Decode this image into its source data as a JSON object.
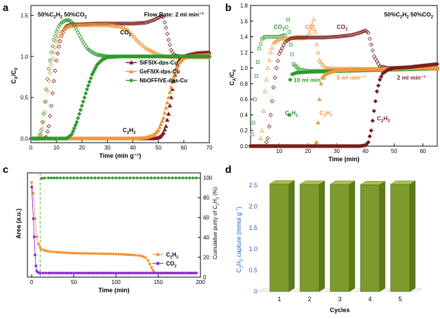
{
  "chart_data": [
    {
      "panel": "a",
      "type": "line",
      "title": "",
      "header_left": "50%C2H2  50%CO2",
      "header_right": "Flow Rate: 2 ml min⁻¹",
      "xlabel": "Time (min g⁻¹)",
      "ylabel": "CA/C0",
      "xlim": [
        0,
        70
      ],
      "ylim": [
        -0.05,
        1.62
      ],
      "xticks": [
        "0",
        "10",
        "20",
        "30",
        "40",
        "50",
        "60",
        "70"
      ],
      "yticks": [
        "0.0",
        "0.5",
        "1.0",
        "1.5"
      ],
      "annotations": [
        {
          "text": "CO2",
          "x": 35,
          "y": 1.27
        },
        {
          "text": "C2H2",
          "x": 36,
          "y": 0.08
        }
      ],
      "legend": [
        "SIFSIX-dps-Cu",
        "GeFSIX-dps-Cu",
        "NbOFFIVE-dps-Cu"
      ],
      "legend_position": "right",
      "colors": {
        "SIFSIX-dps-Cu": "#7a1e1e",
        "GeFSIX-dps-Cu": "#f0963a",
        "NbOFFIVE-dps-Cu": "#2e9a2e"
      },
      "series": [
        {
          "name": "SIFSIX-dps-Cu",
          "gas": "CO2",
          "marker": "open-diamond",
          "x": [
            0,
            5,
            6,
            7,
            8,
            9,
            10,
            11,
            12,
            13,
            14,
            16,
            18,
            20,
            25,
            30,
            35,
            40,
            45,
            48,
            50,
            51,
            52,
            53,
            54,
            55,
            56,
            58,
            60,
            62,
            65,
            70
          ],
          "y": [
            0,
            0,
            0.02,
            0.15,
            0.4,
            0.7,
            0.95,
            1.12,
            1.25,
            1.33,
            1.37,
            1.39,
            1.39,
            1.39,
            1.4,
            1.4,
            1.4,
            1.4,
            1.41,
            1.44,
            1.47,
            1.49,
            1.48,
            1.35,
            1.2,
            1.08,
            1.02,
            1.0,
            1.0,
            1.0,
            1.0,
            1.0
          ]
        },
        {
          "name": "GeFSIX-dps-Cu",
          "gas": "CO2",
          "marker": "open-diamond",
          "x": [
            0,
            3,
            4,
            5,
            6,
            7,
            8,
            9,
            10,
            11,
            12,
            14,
            16,
            18,
            20,
            25,
            30,
            35,
            38,
            40,
            42,
            45,
            48,
            50,
            52,
            55,
            58,
            60,
            65,
            70
          ],
          "y": [
            0,
            0,
            0.05,
            0.2,
            0.45,
            0.7,
            0.9,
            1.05,
            1.17,
            1.25,
            1.3,
            1.35,
            1.37,
            1.38,
            1.38,
            1.38,
            1.38,
            1.36,
            1.32,
            1.25,
            1.18,
            1.1,
            1.05,
            1.02,
            1.0,
            0.99,
            0.99,
            0.99,
            0.99,
            0.99
          ]
        },
        {
          "name": "NbOFFIVE-dps-Cu",
          "gas": "CO2",
          "marker": "open-diamond",
          "x": [
            0,
            3,
            4,
            5,
            6,
            7,
            8,
            9,
            10,
            11,
            12,
            13,
            14,
            15,
            16,
            17,
            18,
            20,
            22,
            24,
            26,
            28,
            30,
            35,
            40,
            50,
            60,
            70
          ],
          "y": [
            0,
            0,
            0.1,
            0.3,
            0.6,
            0.85,
            1.05,
            1.2,
            1.3,
            1.37,
            1.41,
            1.43,
            1.44,
            1.44,
            1.42,
            1.38,
            1.32,
            1.2,
            1.1,
            1.05,
            1.02,
            1.01,
            1.0,
            1.0,
            1.0,
            1.0,
            1.0,
            1.0
          ]
        },
        {
          "name": "SIFSIX-dps-Cu",
          "gas": "C2H2",
          "marker": "filled-triangle",
          "x": [
            0,
            10,
            20,
            30,
            40,
            45,
            48,
            50,
            51,
            52,
            53,
            54,
            55,
            56,
            57,
            58,
            60,
            62,
            65,
            70
          ],
          "y": [
            0,
            0,
            0,
            0,
            0,
            0,
            0,
            0.01,
            0.03,
            0.07,
            0.15,
            0.3,
            0.5,
            0.7,
            0.85,
            0.95,
            1.0,
            1.02,
            1.04,
            1.05
          ]
        },
        {
          "name": "GeFSIX-dps-Cu",
          "gas": "C2H2",
          "marker": "filled-triangle",
          "x": [
            0,
            10,
            20,
            30,
            40,
            45,
            48,
            50,
            52,
            54,
            56,
            58,
            60,
            62,
            65,
            70
          ],
          "y": [
            0,
            0,
            0,
            0,
            0,
            0.01,
            0.04,
            0.1,
            0.25,
            0.5,
            0.75,
            0.92,
            0.98,
            1.0,
            1.01,
            1.02
          ]
        },
        {
          "name": "NbOFFIVE-dps-Cu",
          "gas": "C2H2",
          "marker": "filled-diamond",
          "x": [
            0,
            5,
            10,
            14,
            16,
            18,
            20,
            22,
            24,
            26,
            28,
            30,
            35,
            40,
            50,
            60,
            70
          ],
          "y": [
            0,
            0,
            0,
            0,
            0.05,
            0.2,
            0.4,
            0.6,
            0.78,
            0.9,
            0.96,
            0.99,
            1.0,
            1.0,
            1.0,
            1.0,
            1.0
          ]
        }
      ]
    },
    {
      "panel": "b",
      "type": "line",
      "title": "",
      "header": "50%C2H2  50%CO2",
      "xlabel": "Time (min)",
      "ylabel": "CA/C0",
      "xlim": [
        0,
        65
      ],
      "ylim": [
        0,
        1.8
      ],
      "xticks": [
        "10",
        "20",
        "30",
        "40",
        "50",
        "60"
      ],
      "yticks": [
        "0.0",
        "0.2",
        "0.4",
        "0.6",
        "0.8",
        "1.0",
        "1.2",
        "1.4",
        "1.6",
        "1.8"
      ],
      "annotations": [
        {
          "text": "CO2",
          "x": 8,
          "y": 1.5,
          "color": "#2e9a2e"
        },
        {
          "text": "CO2",
          "x": 19,
          "y": 1.5,
          "color": "#f0963a"
        },
        {
          "text": "CO2",
          "x": 30,
          "y": 1.5,
          "color": "#7a1e1e"
        },
        {
          "text": "10 ml min⁻¹",
          "x": 15,
          "y": 0.82,
          "color": "#2e9a2e"
        },
        {
          "text": "5 ml min⁻¹",
          "x": 30,
          "y": 0.85,
          "color": "#f0963a"
        },
        {
          "text": "2 ml min⁻¹",
          "x": 51,
          "y": 0.85,
          "color": "#7a1e1e"
        },
        {
          "text": "C2H2",
          "x": 12,
          "y": 0.4,
          "color": "#2e9a2e"
        },
        {
          "text": "C2H2",
          "x": 24,
          "y": 0.4,
          "color": "#f0963a"
        },
        {
          "text": "C2H2",
          "x": 44,
          "y": 0.33,
          "color": "#7a1e1e"
        }
      ],
      "series": [
        {
          "name": "10 ml min-1",
          "gas": "CO2",
          "color": "#2e9a2e",
          "marker": "open-square",
          "x": [
            0,
            1,
            2,
            3,
            4,
            5,
            6,
            8,
            10,
            12,
            13,
            14,
            15,
            17,
            20,
            25,
            30,
            40,
            50,
            60,
            65
          ],
          "y": [
            0,
            0.3,
            0.9,
            1.25,
            1.37,
            1.4,
            1.4,
            1.4,
            1.4,
            1.42,
            1.62,
            1.3,
            1.05,
            0.98,
            0.96,
            0.96,
            0.97,
            0.98,
            0.98,
            0.99,
            0.99
          ]
        },
        {
          "name": "5 ml min-1",
          "gas": "CO2",
          "color": "#f0963a",
          "marker": "open-triangle",
          "x": [
            0,
            3,
            4,
            5,
            6,
            7,
            8,
            10,
            12,
            14,
            16,
            18,
            20,
            21,
            22,
            23,
            24,
            26,
            30,
            40,
            50,
            60,
            65
          ],
          "y": [
            0,
            0,
            0.2,
            0.7,
            1.0,
            1.2,
            1.32,
            1.37,
            1.38,
            1.38,
            1.38,
            1.38,
            1.4,
            1.5,
            1.62,
            1.3,
            1.1,
            1.0,
            0.99,
            0.99,
            0.99,
            0.99,
            0.99
          ]
        },
        {
          "name": "2 ml min-1",
          "gas": "CO2",
          "color": "#7a1e1e",
          "marker": "open-diamond",
          "x": [
            0,
            5,
            6,
            7,
            8,
            9,
            10,
            12,
            14,
            16,
            20,
            25,
            30,
            35,
            38,
            40,
            41,
            42,
            43,
            45,
            48,
            50,
            55,
            60,
            65
          ],
          "y": [
            0,
            0,
            0.1,
            0.4,
            0.75,
            1.0,
            1.18,
            1.33,
            1.38,
            1.39,
            1.39,
            1.39,
            1.4,
            1.42,
            1.45,
            1.48,
            1.45,
            1.3,
            1.15,
            1.02,
            1.0,
            1.0,
            1.0,
            1.0,
            1.0
          ]
        },
        {
          "name": "10 ml min-1",
          "gas": "C2H2",
          "color": "#2e9a2e",
          "marker": "filled-diamond",
          "x": [
            0,
            10,
            12,
            13,
            13.4,
            13.8,
            14.5,
            16,
            20,
            30,
            40,
            50,
            60,
            65
          ],
          "y": [
            0,
            0,
            0,
            0,
            0.4,
            0.85,
            0.92,
            0.94,
            0.95,
            0.96,
            0.97,
            0.98,
            0.99,
            1.0
          ]
        },
        {
          "name": "5 ml min-1",
          "gas": "C2H2",
          "color": "#f0963a",
          "marker": "filled-triangle",
          "x": [
            0,
            10,
            20,
            22,
            23,
            23.5,
            24,
            24.5,
            25,
            26,
            28,
            30,
            40,
            50,
            60,
            65
          ],
          "y": [
            0,
            0,
            0,
            0,
            0.05,
            0.3,
            0.6,
            0.8,
            0.88,
            0.92,
            0.95,
            0.97,
            0.98,
            0.99,
            1.0,
            1.0
          ]
        },
        {
          "name": "2 ml min-1",
          "gas": "C2H2",
          "color": "#7a1e1e",
          "marker": "filled-diamond",
          "x": [
            0,
            10,
            20,
            30,
            38,
            40,
            41,
            42,
            43,
            44,
            45,
            46,
            48,
            50,
            55,
            60,
            65
          ],
          "y": [
            0,
            0,
            0,
            0,
            0,
            0.01,
            0.05,
            0.2,
            0.45,
            0.7,
            0.85,
            0.93,
            0.98,
            1.0,
            1.01,
            1.03,
            1.05
          ]
        }
      ]
    },
    {
      "panel": "c",
      "type": "line",
      "title": "",
      "xlabel": "Time (min)",
      "ylabel": "Area (a.u.)",
      "y2label": "Cumulative purity of C2H2 (%)",
      "xlim": [
        -5,
        200
      ],
      "y2lim": [
        0,
        105
      ],
      "xticks": [
        "0",
        "50",
        "100",
        "150",
        "200"
      ],
      "y2ticks": [
        "0",
        "20",
        "40",
        "60",
        "80",
        "100"
      ],
      "legend": [
        "C2H2",
        "CO2"
      ],
      "legend_position": "bottom-right",
      "colors": {
        "C2H2": "#f0963a",
        "CO2": "#8a2be2",
        "purity": "#2e9a2e"
      },
      "series": [
        {
          "name": "C2H2",
          "axis": "left",
          "x": [
            0,
            2,
            4,
            6,
            8,
            10,
            12,
            15,
            20,
            30,
            50,
            75,
            100,
            120,
            130,
            135,
            138,
            140,
            142,
            144,
            146,
            150,
            160,
            170,
            180,
            190,
            195
          ],
          "y": [
            100,
            88,
            60,
            40,
            32,
            28,
            26,
            25,
            24,
            23,
            22,
            21.5,
            21,
            20,
            19,
            17,
            14,
            10,
            6,
            3,
            0.5,
            0,
            0,
            0,
            0,
            0,
            0
          ]
        },
        {
          "name": "CO2",
          "axis": "left",
          "x": [
            0,
            2,
            3,
            4,
            5,
            6,
            8,
            10,
            20,
            50,
            100,
            150,
            195
          ],
          "y": [
            95,
            60,
            40,
            20,
            8,
            2,
            0.5,
            0,
            0,
            0,
            0,
            0,
            0
          ]
        },
        {
          "name": "purity",
          "axis": "right",
          "x": [
            12,
            15,
            20,
            30,
            50,
            75,
            100,
            125,
            150,
            175,
            195
          ],
          "y": [
            99.5,
            99.8,
            99.9,
            99.9,
            99.9,
            99.9,
            99.9,
            99.9,
            99.9,
            99.9,
            99.9
          ]
        }
      ]
    },
    {
      "panel": "d",
      "type": "bar",
      "title": "",
      "xlabel": "Cycles",
      "ylabel": "C2H2 capture (mmol g⁻¹)",
      "categories": [
        "1",
        "2",
        "3",
        "4",
        "5"
      ],
      "values": [
        2.53,
        2.52,
        2.52,
        2.51,
        2.52
      ],
      "ylim": [
        0,
        2.5
      ],
      "yticks": [
        "0",
        "0.5",
        "1.0",
        "1.5",
        "2.0",
        "2.5"
      ],
      "colors": {
        "bar": "#7d9a2e",
        "bar_side": "#5c7a1a",
        "bar_top": "#a7c34a"
      }
    }
  ]
}
